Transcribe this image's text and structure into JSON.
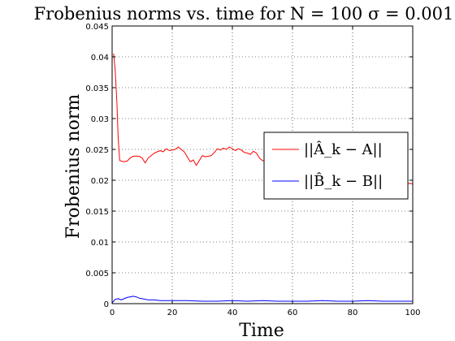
{
  "chart_data": {
    "type": "line",
    "title": "Frobenius norms vs. time for N = 100 σ = 0.001",
    "xlabel": "Time",
    "ylabel": "Frobenius norm",
    "xlim": [
      0,
      100
    ],
    "ylim": [
      0,
      0.045
    ],
    "x_ticks": [
      0,
      20,
      40,
      60,
      80,
      100
    ],
    "y_ticks": [
      0,
      0.005,
      0.01,
      0.015,
      0.02,
      0.025,
      0.03,
      0.035,
      0.04,
      0.045
    ],
    "x_tick_labels": [
      "0",
      "20",
      "40",
      "60",
      "80",
      "100"
    ],
    "y_tick_labels": [
      "0",
      "0.005",
      "0.01",
      "0.015",
      "0.02",
      "0.025",
      "0.03",
      "0.035",
      "0.04",
      "0.045"
    ],
    "grid": true,
    "legend": {
      "placement": "right",
      "entries": [
        {
          "label": "||Â_k − A||",
          "color": "#ff0000"
        },
        {
          "label": "||B̂_k − B||",
          "color": "#0000ff"
        }
      ]
    },
    "series": [
      {
        "name": "||Â_k − A||",
        "color": "#ff0000",
        "x": [
          0.5,
          1,
          1.6,
          2,
          2.5,
          3,
          4,
          5,
          6,
          7,
          8,
          9,
          10,
          11,
          12,
          13,
          14,
          15,
          16,
          17,
          18,
          19,
          20,
          21,
          22,
          23,
          24,
          25,
          26,
          27,
          28,
          29,
          30,
          31,
          32,
          33,
          34,
          35,
          36,
          37,
          38,
          39,
          40,
          41,
          42,
          43,
          44,
          45,
          46,
          47,
          48,
          49,
          50,
          51,
          52,
          53,
          54,
          94,
          95,
          96,
          97,
          98,
          99,
          100
        ],
        "values": [
          0.0405,
          0.038,
          0.0325,
          0.027,
          0.0232,
          0.0231,
          0.023,
          0.0231,
          0.0236,
          0.0239,
          0.0239,
          0.0239,
          0.0236,
          0.0228,
          0.0236,
          0.024,
          0.0244,
          0.0246,
          0.0248,
          0.0246,
          0.0251,
          0.0248,
          0.0249,
          0.025,
          0.0254,
          0.025,
          0.0246,
          0.0238,
          0.023,
          0.0233,
          0.0224,
          0.0232,
          0.024,
          0.0238,
          0.0239,
          0.024,
          0.0245,
          0.0251,
          0.0249,
          0.0252,
          0.025,
          0.0254,
          0.0251,
          0.0248,
          0.0251,
          0.0249,
          0.0245,
          0.0244,
          0.0242,
          0.0247,
          0.0244,
          0.0236,
          0.0232,
          0.0231,
          0.0229,
          0.0229,
          0.0229,
          0.0197,
          0.0195,
          0.0196,
          0.0195,
          0.0194,
          0.0195,
          0.0194
        ]
      },
      {
        "name": "||B̂_k − B||",
        "color": "#0000ff",
        "x": [
          0,
          1,
          2,
          3,
          4,
          5,
          6,
          7,
          8,
          9,
          10,
          12,
          14,
          16,
          18,
          20,
          25,
          30,
          35,
          40,
          45,
          50,
          55,
          60,
          65,
          70,
          75,
          80,
          85,
          90,
          95,
          100
        ],
        "values": [
          0.0001,
          0.0007,
          0.0008,
          0.0006,
          0.0008,
          0.001,
          0.0011,
          0.0012,
          0.0011,
          0.0009,
          0.0008,
          0.0006,
          0.0006,
          0.0005,
          0.0005,
          0.0005,
          0.0005,
          0.0004,
          0.0004,
          0.0005,
          0.0004,
          0.0005,
          0.0004,
          0.0004,
          0.0004,
          0.0005,
          0.0004,
          0.0004,
          0.0005,
          0.0004,
          0.0004,
          0.0004
        ]
      }
    ]
  }
}
